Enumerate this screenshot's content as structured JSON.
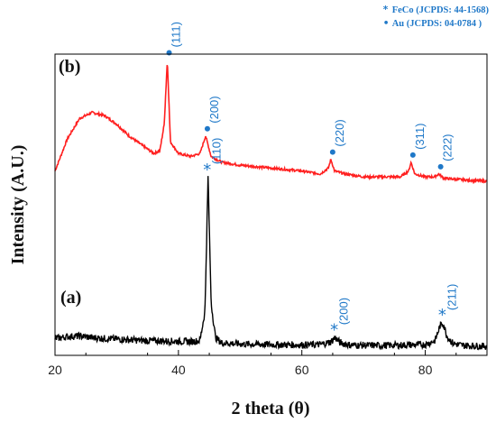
{
  "legend": {
    "items": [
      {
        "symbol": "*",
        "text": "FeCo (JCPDS: 44-1568)"
      },
      {
        "symbol": "•",
        "text": "Au (JCPDS: 04-0784 )"
      }
    ],
    "color": "#1f78c8"
  },
  "chart_data": {
    "type": "line",
    "xlabel": "2 theta (θ)",
    "ylabel": "Intensity (A.U.)",
    "xlim": [
      20,
      90
    ],
    "xticks": [
      20,
      40,
      60,
      80
    ],
    "grid": false,
    "legend_position": "top-right",
    "series": [
      {
        "label": "(b)",
        "color": "#ff2020",
        "x": [
          20,
          22,
          24,
          26,
          28,
          30,
          32,
          34,
          36,
          37,
          37.7,
          38.2,
          38.7,
          40,
          42,
          43.5,
          44.4,
          45.3,
          47,
          50,
          55,
          60,
          63,
          64.3,
          64.7,
          65.3,
          67,
          70,
          73,
          76,
          77.3,
          77.7,
          78.3,
          80,
          81.5,
          82.2,
          83,
          86,
          90
        ],
        "y": [
          0.6,
          0.71,
          0.78,
          0.8,
          0.79,
          0.76,
          0.72,
          0.69,
          0.66,
          0.67,
          0.76,
          0.98,
          0.7,
          0.66,
          0.65,
          0.66,
          0.72,
          0.65,
          0.63,
          0.62,
          0.61,
          0.6,
          0.59,
          0.61,
          0.64,
          0.6,
          0.59,
          0.58,
          0.58,
          0.58,
          0.6,
          0.63,
          0.59,
          0.58,
          0.58,
          0.59,
          0.575,
          0.57,
          0.565
        ],
        "peaks": [
          {
            "x": 38.2,
            "label": "(111)",
            "marker": "•"
          },
          {
            "x": 44.4,
            "label": "(200)",
            "marker": "•"
          },
          {
            "x": 64.7,
            "label": "(220)",
            "marker": "•"
          },
          {
            "x": 77.7,
            "label": "(311)",
            "marker": "•"
          },
          {
            "x": 82.2,
            "label": "(222)",
            "marker": "•"
          }
        ]
      },
      {
        "label": "(a)",
        "color": "#000000",
        "x": [
          20,
          22,
          24,
          26,
          28,
          30,
          34,
          38,
          42,
          43.5,
          44.3,
          44.8,
          45.3,
          46,
          47,
          50,
          55,
          60,
          63,
          64.7,
          65.4,
          66.2,
          68,
          72,
          76,
          80,
          81.6,
          82.4,
          82.9,
          83.5,
          84.5,
          86,
          90
        ],
        "y": [
          0.027,
          0.033,
          0.035,
          0.03,
          0.027,
          0.025,
          0.02,
          0.018,
          0.016,
          0.02,
          0.12,
          0.58,
          0.15,
          0.03,
          0.012,
          0.008,
          0.006,
          0.005,
          0.006,
          0.015,
          0.03,
          0.012,
          0.004,
          0.003,
          0.004,
          0.006,
          0.02,
          0.07,
          0.08,
          0.035,
          0.01,
          0.003,
          0.0
        ],
        "peaks": [
          {
            "x": 44.8,
            "label": "(110)",
            "marker": "*"
          },
          {
            "x": 65.4,
            "label": "(200)",
            "marker": "*"
          },
          {
            "x": 82.9,
            "label": "(211)",
            "marker": "*"
          }
        ]
      }
    ]
  }
}
